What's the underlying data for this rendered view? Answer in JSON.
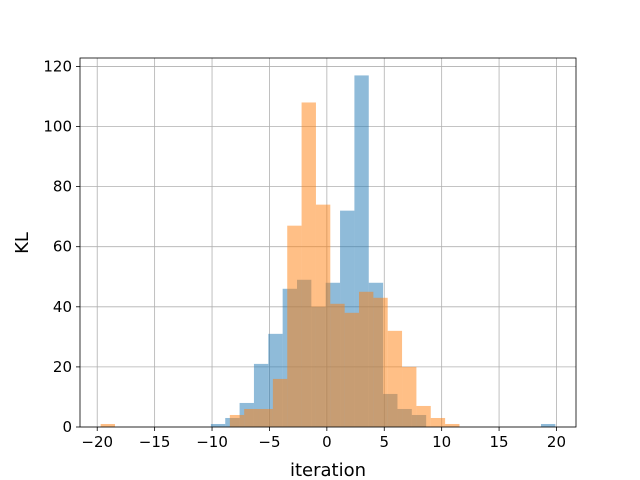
{
  "chart_data": {
    "type": "bar",
    "title": "",
    "xlabel": "iteration",
    "ylabel": "KL",
    "xlim": [
      -21.5,
      21.7
    ],
    "ylim": [
      0,
      122.8
    ],
    "xticks": [
      -20,
      -15,
      -10,
      -5,
      0,
      5,
      10,
      15,
      20
    ],
    "yticks": [
      0,
      20,
      40,
      60,
      80,
      100,
      120
    ],
    "grid": true,
    "legend": "none",
    "histogram": true,
    "series": [
      {
        "color": "#1f77b4",
        "alpha": 0.5,
        "bin_start": -10.1,
        "bin_width": 1.25,
        "values": [
          1,
          3,
          8,
          21,
          31,
          46,
          49,
          40,
          48,
          72,
          117,
          48,
          11,
          6,
          4,
          0,
          0,
          0,
          0,
          0,
          0,
          0,
          0,
          1
        ]
      },
      {
        "color": "#ff7f0e",
        "alpha": 0.5,
        "bin_start": -19.7,
        "bin_width": 1.25,
        "values": [
          1,
          0,
          0,
          0,
          0,
          0,
          0,
          0,
          0,
          4,
          6,
          6,
          16,
          67,
          108,
          74,
          41,
          38,
          45,
          43,
          32,
          20,
          7,
          3,
          1
        ]
      }
    ]
  }
}
